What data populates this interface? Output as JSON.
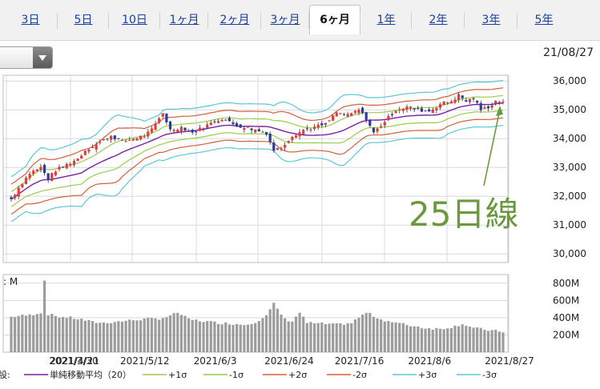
{
  "tabs": [
    {
      "label": "3日",
      "active": false
    },
    {
      "label": "5日",
      "active": false
    },
    {
      "label": "10日",
      "active": false
    },
    {
      "label": "1ヶ月",
      "active": false
    },
    {
      "label": "2ヶ月",
      "active": false
    },
    {
      "label": "3ヶ月",
      "active": false
    },
    {
      "label": "6ヶ月",
      "active": true
    },
    {
      "label": "1年",
      "active": false
    },
    {
      "label": "2年",
      "active": false
    },
    {
      "label": "3年",
      "active": false
    },
    {
      "label": "5年",
      "active": false
    }
  ],
  "date_label": "21/08/27",
  "annotation": "25日線",
  "volume_unit_label": ": M",
  "legend_prefix": "設:",
  "colors": {
    "sma": "#7a1fa2",
    "sigma1": "#9ccc4a",
    "sigma2": "#d0603a",
    "sigma3": "#5bc7d6",
    "candle_up": "#e83a3a",
    "candle_down": "#2b3c9a",
    "volume": "#9c9c9c",
    "annotation": "#6a9a3c",
    "grid": "#d9d9d9"
  },
  "chart_data": {
    "type": "line",
    "x_tick_labels": [
      "2021/3/30",
      "2021/4/21",
      "2021/5/12",
      "2021/6/3",
      "2021/6/24",
      "2021/7/16",
      "2021/8/6",
      "2021/8/27"
    ],
    "price_axis": {
      "ylim": [
        29700,
        36200
      ],
      "ticks": [
        30000,
        31000,
        32000,
        33000,
        34000,
        35000,
        36000
      ],
      "tick_labels": [
        "30,000",
        "31,000",
        "32,000",
        "33,000",
        "34,000",
        "35,000",
        "36,000"
      ]
    },
    "volume_axis": {
      "ylim": [
        0,
        900
      ],
      "ticks": [
        200,
        400,
        600,
        800
      ],
      "tick_labels": [
        "200M",
        "400M",
        "600M",
        "800M"
      ]
    },
    "legend": [
      {
        "label": "単純移動平均（20）",
        "color": "#7a1fa2"
      },
      {
        "label": "+1σ",
        "color": "#9ccc4a"
      },
      {
        "label": "-1σ",
        "color": "#9ccc4a"
      },
      {
        "label": "+2σ",
        "color": "#d0603a"
      },
      {
        "label": "-2σ",
        "color": "#d0603a"
      },
      {
        "label": "+3σ",
        "color": "#5bc7d6"
      },
      {
        "label": "-3σ",
        "color": "#5bc7d6"
      }
    ],
    "close_keypoints": [
      [
        0,
        31900
      ],
      [
        2,
        32300
      ],
      [
        5,
        32800
      ],
      [
        8,
        33000
      ],
      [
        10,
        32600
      ],
      [
        12,
        32900
      ],
      [
        15,
        33100
      ],
      [
        18,
        33300
      ],
      [
        20,
        33600
      ],
      [
        23,
        33800
      ],
      [
        27,
        34100
      ],
      [
        30,
        33900
      ],
      [
        33,
        34000
      ],
      [
        36,
        34100
      ],
      [
        38,
        34300
      ],
      [
        40,
        34700
      ],
      [
        41,
        34900
      ],
      [
        43,
        34300
      ],
      [
        46,
        34400
      ],
      [
        49,
        34200
      ],
      [
        52,
        34400
      ],
      [
        55,
        34600
      ],
      [
        57,
        34700
      ],
      [
        60,
        34500
      ],
      [
        63,
        34400
      ],
      [
        66,
        34300
      ],
      [
        69,
        34200
      ],
      [
        71,
        33600
      ],
      [
        73,
        33700
      ],
      [
        76,
        34100
      ],
      [
        79,
        34300
      ],
      [
        82,
        34400
      ],
      [
        85,
        34500
      ],
      [
        88,
        34900
      ],
      [
        91,
        34800
      ],
      [
        94,
        35000
      ],
      [
        96,
        34700
      ],
      [
        98,
        34200
      ],
      [
        101,
        34600
      ],
      [
        104,
        35000
      ],
      [
        107,
        35100
      ],
      [
        110,
        35000
      ],
      [
        113,
        34950
      ],
      [
        116,
        35200
      ],
      [
        119,
        35300
      ],
      [
        121,
        35500
      ],
      [
        123,
        35300
      ],
      [
        125,
        35400
      ],
      [
        127,
        35000
      ],
      [
        129,
        35100
      ],
      [
        131,
        35300
      ],
      [
        133,
        35300
      ]
    ],
    "volume_keypoints": [
      [
        0,
        410
      ],
      [
        2,
        420
      ],
      [
        5,
        430
      ],
      [
        8,
        460
      ],
      [
        9,
        830
      ],
      [
        10,
        440
      ],
      [
        13,
        410
      ],
      [
        16,
        400
      ],
      [
        19,
        380
      ],
      [
        22,
        350
      ],
      [
        25,
        340
      ],
      [
        30,
        360
      ],
      [
        35,
        380
      ],
      [
        40,
        390
      ],
      [
        43,
        420
      ],
      [
        45,
        460
      ],
      [
        48,
        380
      ],
      [
        52,
        360
      ],
      [
        56,
        340
      ],
      [
        60,
        330
      ],
      [
        63,
        320
      ],
      [
        66,
        350
      ],
      [
        69,
        420
      ],
      [
        71,
        560
      ],
      [
        74,
        380
      ],
      [
        76,
        360
      ],
      [
        78,
        460
      ],
      [
        80,
        340
      ],
      [
        84,
        330
      ],
      [
        88,
        320
      ],
      [
        92,
        340
      ],
      [
        96,
        460
      ],
      [
        100,
        380
      ],
      [
        104,
        340
      ],
      [
        108,
        310
      ],
      [
        112,
        280
      ],
      [
        116,
        270
      ],
      [
        120,
        300
      ],
      [
        122,
        330
      ],
      [
        125,
        280
      ],
      [
        130,
        250
      ],
      [
        133,
        240
      ]
    ]
  }
}
